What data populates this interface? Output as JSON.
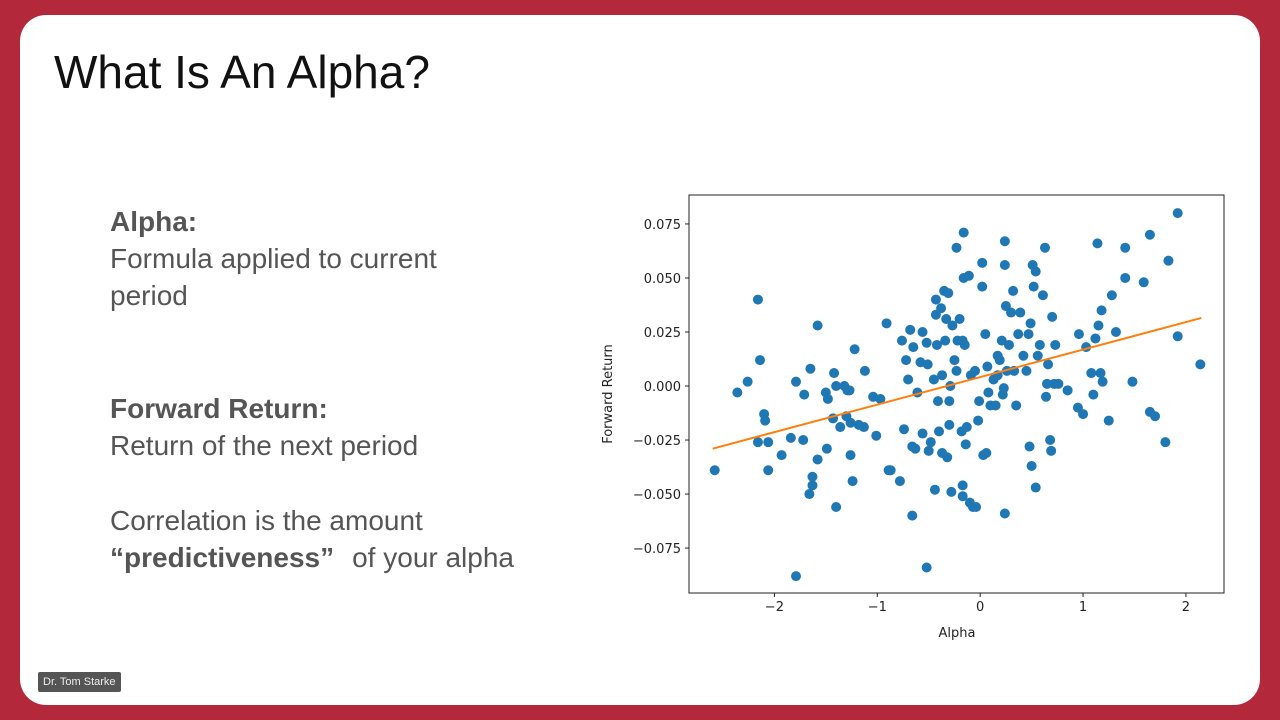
{
  "slide": {
    "title": "What Is An Alpha?",
    "alpha_heading": "Alpha:",
    "alpha_text": "Formula applied to current period",
    "forward_heading": "Forward Return:",
    "forward_text": "Return of the next period",
    "correlation_text": "Correlation is the amount",
    "correlation_bold": "“predictiveness”",
    "correlation_tail": "of your alpha",
    "badge": "Dr. Tom Starke"
  },
  "chart_data": {
    "type": "scatter",
    "x_label": "Alpha",
    "y_label": "Forward Return",
    "color": "#1f77b4",
    "xlim": [
      -2.83,
      2.37
    ],
    "ylim": [
      -0.0958,
      0.0884
    ],
    "xticks": [
      {
        "value": -2,
        "label": "−2"
      },
      {
        "value": -1,
        "label": "−1"
      },
      0,
      1,
      2
    ],
    "yticks": [
      {
        "value": -0.075,
        "label": "−0.075"
      },
      {
        "value": -0.05,
        "label": "−0.050"
      },
      {
        "value": -0.025,
        "label": "−0.025"
      },
      {
        "value": 0,
        "label": "0.000"
      },
      {
        "value": 0.025,
        "label": "0.025"
      },
      {
        "value": 0.05,
        "label": "0.050"
      },
      {
        "value": 0.075,
        "label": "0.075"
      }
    ],
    "x": [
      -2.58,
      -2.36,
      -2.26,
      -2.16,
      -2.14,
      -2.16,
      -2.1,
      -2.09,
      -2.06,
      -2.06,
      -1.93,
      -1.84,
      -1.79,
      -1.79,
      -1.72,
      -1.71,
      -1.66,
      -1.65,
      -1.63,
      -1.63,
      -1.58,
      -1.58,
      -1.5,
      -1.49,
      -1.48,
      -1.43,
      -1.42,
      -1.4,
      -1.4,
      -1.36,
      -1.32,
      -1.3,
      -1.29,
      -1.27,
      -1.26,
      -1.26,
      -1.24,
      -1.22,
      -1.18,
      -1.13,
      -1.12,
      -1.04,
      -1.01,
      -0.97,
      -0.91,
      -0.89,
      -0.87,
      -0.78,
      -0.76,
      -0.74,
      -0.72,
      -0.7,
      -0.68,
      -0.66,
      -0.66,
      -0.65,
      -0.63,
      -0.61,
      -0.58,
      -0.56,
      -0.56,
      -0.52,
      -0.52,
      -0.51,
      -0.5,
      -0.48,
      -0.45,
      -0.44,
      -0.43,
      -0.43,
      -0.42,
      -0.41,
      -0.4,
      -0.38,
      -0.37,
      -0.37,
      -0.35,
      -0.34,
      -0.33,
      -0.32,
      -0.31,
      -0.3,
      -0.3,
      -0.29,
      -0.28,
      -0.27,
      -0.25,
      -0.23,
      -0.23,
      -0.22,
      -0.2,
      -0.18,
      -0.17,
      -0.17,
      -0.16,
      -0.17,
      -0.16,
      -0.15,
      -0.14,
      -0.13,
      -0.11,
      -0.1,
      -0.09,
      -0.07,
      -0.05,
      -0.04,
      -0.02,
      -0.01,
      0.02,
      0.02,
      0.03,
      0.05,
      0.06,
      0.07,
      0.08,
      0.1,
      0.13,
      0.15,
      0.17,
      0.17,
      0.19,
      0.21,
      0.22,
      0.23,
      0.24,
      0.24,
      0.24,
      0.25,
      0.26,
      0.28,
      0.3,
      0.32,
      0.33,
      0.35,
      0.37,
      0.39,
      0.42,
      0.45,
      0.47,
      0.48,
      0.49,
      0.5,
      0.51,
      0.52,
      0.54,
      0.54,
      0.56,
      0.58,
      0.61,
      0.63,
      0.64,
      0.65,
      0.66,
      0.68,
      0.69,
      0.7,
      0.72,
      0.73,
      0.76,
      0.85,
      0.95,
      0.96,
      1.0,
      1.03,
      1.08,
      1.1,
      1.12,
      1.14,
      1.15,
      1.17,
      1.18,
      1.19,
      1.25,
      1.28,
      1.32,
      1.41,
      1.41,
      1.48,
      1.59,
      1.65,
      1.65,
      1.7,
      1.8,
      1.83,
      1.92,
      1.92,
      2.14
    ],
    "values": [
      -0.039,
      -0.003,
      0.002,
      0.04,
      0.012,
      -0.026,
      -0.013,
      -0.016,
      -0.026,
      -0.039,
      -0.032,
      -0.024,
      0.002,
      -0.088,
      -0.025,
      -0.004,
      -0.05,
      0.008,
      -0.042,
      -0.046,
      0.028,
      -0.034,
      -0.003,
      -0.029,
      -0.006,
      -0.015,
      0.006,
      -0.056,
      0.0,
      -0.019,
      0.0,
      -0.014,
      -0.002,
      -0.002,
      -0.032,
      -0.017,
      -0.044,
      0.017,
      -0.018,
      -0.019,
      0.007,
      -0.005,
      -0.023,
      -0.006,
      0.029,
      -0.039,
      -0.039,
      -0.044,
      0.021,
      -0.02,
      0.012,
      0.003,
      0.026,
      -0.028,
      -0.06,
      0.018,
      -0.029,
      -0.003,
      0.011,
      0.025,
      -0.022,
      0.02,
      -0.084,
      0.01,
      -0.03,
      -0.026,
      0.003,
      -0.048,
      0.04,
      0.033,
      0.019,
      -0.007,
      -0.021,
      0.036,
      0.005,
      -0.031,
      0.044,
      0.021,
      0.031,
      -0.033,
      0.043,
      -0.007,
      -0.018,
      0.0,
      -0.049,
      0.028,
      0.012,
      0.064,
      0.007,
      0.021,
      0.031,
      -0.021,
      -0.046,
      -0.051,
      0.071,
      0.021,
      0.05,
      0.019,
      -0.027,
      -0.019,
      0.051,
      -0.054,
      0.005,
      -0.056,
      0.007,
      -0.056,
      -0.016,
      -0.007,
      0.057,
      0.046,
      -0.032,
      0.024,
      -0.031,
      0.009,
      -0.003,
      -0.009,
      0.003,
      -0.009,
      0.005,
      0.014,
      0.012,
      0.021,
      -0.004,
      -0.001,
      0.067,
      0.056,
      -0.059,
      0.037,
      0.007,
      0.019,
      0.034,
      0.044,
      0.007,
      -0.009,
      0.024,
      0.034,
      0.014,
      0.007,
      0.024,
      -0.028,
      0.029,
      -0.037,
      0.056,
      0.046,
      -0.047,
      0.053,
      0.014,
      0.019,
      0.042,
      0.064,
      -0.005,
      0.001,
      0.01,
      -0.025,
      -0.03,
      0.032,
      0.001,
      0.019,
      0.001,
      -0.002,
      -0.01,
      0.024,
      -0.013,
      0.018,
      0.006,
      -0.004,
      0.022,
      0.066,
      0.028,
      0.006,
      0.035,
      0.002,
      -0.016,
      0.042,
      0.025,
      0.064,
      0.05,
      0.002,
      0.048,
      0.07,
      -0.012,
      -0.014,
      -0.026,
      0.058,
      0.08,
      0.023,
      0.01
    ],
    "fit_line": {
      "x": [
        -2.6,
        2.15
      ],
      "values": [
        -0.029,
        0.0315
      ],
      "color": "#ff7f0e"
    }
  }
}
